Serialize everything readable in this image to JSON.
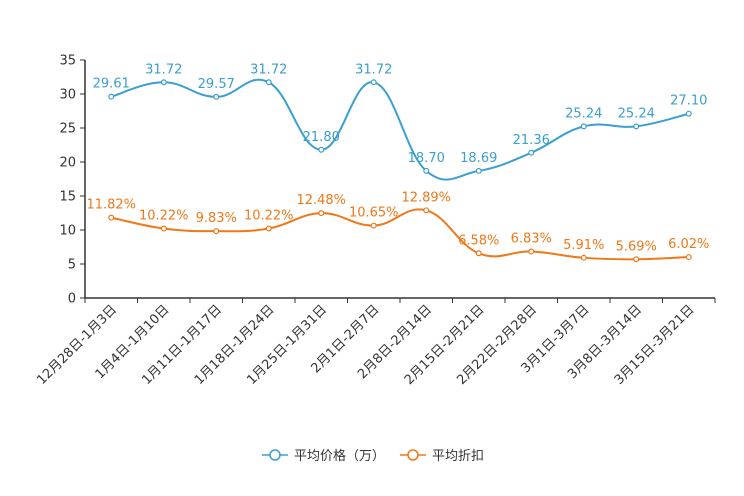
{
  "chart_data": {
    "type": "line",
    "categories": [
      "12月28日-1月3日",
      "1月4日-1月10日",
      "1月11日-1月17日",
      "1月18日-1月24日",
      "1月25日-1月31日",
      "2月1日-2月7日",
      "2月8日-2月14日",
      "2月15日-2月21日",
      "2月22日-2月28日",
      "3月1日-3月7日",
      "3月8日-3月14日",
      "3月15日-3月21日"
    ],
    "ylim": [
      0,
      35
    ],
    "yticks": [
      0,
      5,
      10,
      15,
      20,
      25,
      30,
      35
    ],
    "series": [
      {
        "name": "平均价格（万）",
        "color": "#3b9fcf",
        "values": [
          29.61,
          31.72,
          29.57,
          31.72,
          21.8,
          31.72,
          18.7,
          18.69,
          21.36,
          25.24,
          25.24,
          27.1
        ],
        "labels": [
          "29.61",
          "31.72",
          "29.57",
          "31.72",
          "21.80",
          "31.72",
          "18.70",
          "18.69",
          "21.36",
          "25.24",
          "25.24",
          "27.10"
        ]
      },
      {
        "name": "平均折扣",
        "color": "#f07818",
        "values": [
          11.82,
          10.22,
          9.83,
          10.22,
          12.48,
          10.65,
          12.89,
          6.58,
          6.83,
          5.91,
          5.69,
          6.02
        ],
        "labels": [
          "11.82%",
          "10.22%",
          "9.83%",
          "10.22%",
          "12.48%",
          "10.65%",
          "12.89%",
          "6.58%",
          "6.83%",
          "5.91%",
          "5.69%",
          "6.02%"
        ]
      }
    ],
    "legend_position": "bottom-center"
  }
}
